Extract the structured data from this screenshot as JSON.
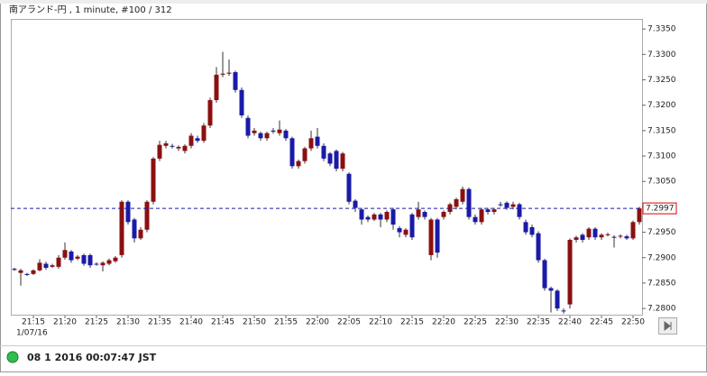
{
  "chart_data": {
    "type": "candlestick",
    "title": "南アランド-円 , 1 minute, #100 / 312",
    "date_label": "1/07/16",
    "categories": [
      null,
      null,
      null,
      "21:15",
      null,
      null,
      null,
      null,
      "21:20",
      null,
      null,
      null,
      null,
      "21:25",
      null,
      null,
      null,
      null,
      "21:30",
      null,
      null,
      null,
      null,
      "21:35",
      null,
      null,
      null,
      null,
      "21:40",
      null,
      null,
      null,
      null,
      "21:45",
      null,
      null,
      null,
      null,
      "21:50",
      null,
      null,
      null,
      null,
      "21:55",
      null,
      null,
      null,
      null,
      "22:00",
      null,
      null,
      null,
      null,
      "22:05",
      null,
      null,
      null,
      null,
      "22:10",
      null,
      null,
      null,
      null,
      "22:15",
      null,
      null,
      null,
      null,
      "22:20",
      null,
      null,
      null,
      null,
      "22:25",
      null,
      null,
      null,
      null,
      "22:30",
      null,
      null,
      null,
      null,
      "22:35",
      null,
      null,
      null,
      null,
      "22:40",
      null,
      null,
      null,
      null,
      "22:45",
      null,
      null,
      null,
      null,
      "22:50",
      null
    ],
    "open": [
      7.2878,
      7.287,
      7.2868,
      7.2868,
      7.2875,
      7.2888,
      7.2882,
      7.2882,
      7.29,
      7.2912,
      7.2898,
      7.2905,
      7.2905,
      7.2888,
      7.2885,
      7.2888,
      7.2893,
      7.2905,
      7.301,
      7.2975,
      7.2938,
      7.2955,
      7.301,
      7.3095,
      7.312,
      7.312,
      7.3115,
      7.311,
      7.312,
      7.3135,
      7.313,
      7.316,
      7.321,
      7.326,
      7.3262,
      7.3265,
      7.323,
      7.3175,
      7.3145,
      7.3145,
      7.3135,
      7.315,
      7.3145,
      7.315,
      7.3135,
      7.308,
      7.309,
      7.3115,
      7.3138,
      7.312,
      7.3105,
      7.311,
      7.3075,
      7.3065,
      7.3012,
      7.2995,
      7.298,
      7.2975,
      7.2985,
      7.2975,
      7.2995,
      7.2958,
      7.2945,
      7.2985,
      7.298,
      7.299,
      7.2905,
      7.2975,
      7.298,
      7.299,
      7.3,
      7.301,
      7.3035,
      7.298,
      7.297,
      7.2995,
      7.299,
      7.3005,
      7.3008,
      7.3,
      7.3005,
      7.297,
      7.296,
      7.2948,
      7.2895,
      7.284,
      7.2835,
      7.2796,
      7.2808,
      7.2935,
      7.2945,
      7.294,
      7.2957,
      7.294,
      7.2945,
      7.2941,
      7.2942,
      7.2942,
      7.2938,
      7.297
    ],
    "high": [
      7.288,
      7.2878,
      7.287,
      7.2877,
      7.2897,
      7.2892,
      7.2888,
      7.2905,
      7.293,
      7.2915,
      7.2905,
      7.2908,
      7.2908,
      7.2891,
      7.2893,
      7.2898,
      7.2903,
      7.3013,
      7.3013,
      7.2978,
      7.296,
      7.3013,
      7.3098,
      7.313,
      7.313,
      7.3124,
      7.3121,
      7.3123,
      7.3145,
      7.314,
      7.3165,
      7.3215,
      7.3275,
      7.3305,
      7.329,
      7.3268,
      7.3235,
      7.318,
      7.3155,
      7.3148,
      7.3148,
      7.3155,
      7.317,
      7.3153,
      7.3138,
      7.3093,
      7.3118,
      7.315,
      7.3155,
      7.3125,
      7.3108,
      7.3113,
      7.3108,
      7.3068,
      7.3015,
      7.2998,
      7.2983,
      7.2988,
      7.2988,
      7.2993,
      7.2998,
      7.2962,
      7.2958,
      7.2988,
      7.301,
      7.2993,
      7.2978,
      7.2978,
      7.2993,
      7.3008,
      7.3018,
      7.304,
      7.3038,
      7.2985,
      7.2998,
      7.2998,
      7.2998,
      7.301,
      7.3011,
      7.301,
      7.3008,
      7.2975,
      7.2965,
      7.2952,
      7.2898,
      7.2843,
      7.2838,
      7.28,
      7.2938,
      7.2943,
      7.2948,
      7.296,
      7.296,
      7.2948,
      7.2949,
      7.2944,
      7.2946,
      7.2945,
      7.2973,
      7.3
    ],
    "low": [
      7.2874,
      7.2845,
      7.2864,
      7.2866,
      7.2873,
      7.2876,
      7.288,
      7.2878,
      7.2896,
      7.289,
      7.2895,
      7.2884,
      7.288,
      7.2884,
      7.2873,
      7.2885,
      7.289,
      7.29,
      7.2965,
      7.293,
      7.2935,
      7.295,
      7.3005,
      7.309,
      7.3115,
      7.3115,
      7.311,
      7.3105,
      7.3115,
      7.3126,
      7.3126,
      7.3155,
      7.3205,
      7.3255,
      7.3258,
      7.3225,
      7.3175,
      7.3135,
      7.314,
      7.313,
      7.313,
      7.3144,
      7.314,
      7.313,
      7.3075,
      7.3075,
      7.3085,
      7.311,
      7.3115,
      7.309,
      7.308,
      7.307,
      7.307,
      7.3005,
      7.299,
      7.2965,
      7.297,
      7.2972,
      7.296,
      7.297,
      7.2955,
      7.294,
      7.294,
      7.2935,
      7.2975,
      7.2975,
      7.2895,
      7.29,
      7.2975,
      7.2985,
      7.2995,
      7.3005,
      7.2975,
      7.2965,
      7.2965,
      7.2985,
      7.2985,
      7.3,
      7.2994,
      7.2995,
      7.2975,
      7.2945,
      7.294,
      7.289,
      7.2835,
      7.2792,
      7.2795,
      7.279,
      7.28,
      7.293,
      7.293,
      7.2935,
      7.2935,
      7.2935,
      7.2942,
      7.292,
      7.2938,
      7.2935,
      7.2935,
      7.2965
    ],
    "close": [
      7.2876,
      7.2875,
      7.2866,
      7.2875,
      7.289,
      7.288,
      7.2885,
      7.29,
      7.2915,
      7.2895,
      7.2902,
      7.2888,
      7.2885,
      7.2887,
      7.289,
      7.2895,
      7.29,
      7.301,
      7.297,
      7.2938,
      7.2955,
      7.301,
      7.3095,
      7.3122,
      7.3125,
      7.3119,
      7.3118,
      7.312,
      7.314,
      7.313,
      7.316,
      7.321,
      7.326,
      7.3262,
      7.3264,
      7.323,
      7.318,
      7.314,
      7.315,
      7.3135,
      7.3145,
      7.3148,
      7.3152,
      7.3135,
      7.308,
      7.309,
      7.3115,
      7.3135,
      7.312,
      7.3095,
      7.3085,
      7.3075,
      7.3105,
      7.301,
      7.2998,
      7.2975,
      7.2975,
      7.2985,
      7.2975,
      7.299,
      7.2965,
      7.295,
      7.2955,
      7.294,
      7.2995,
      7.298,
      7.2975,
      7.291,
      7.299,
      7.3005,
      7.3015,
      7.3035,
      7.298,
      7.297,
      7.2995,
      7.299,
      7.2995,
      7.3004,
      7.2998,
      7.3005,
      7.298,
      7.295,
      7.2945,
      7.2895,
      7.284,
      7.2835,
      7.28,
      7.2795,
      7.2935,
      7.294,
      7.2935,
      7.2957,
      7.294,
      7.2945,
      7.2946,
      7.294,
      7.2943,
      7.2938,
      7.297,
      7.2997
    ],
    "up_color": "#8b1010",
    "down_color": "#1a1aa8",
    "ylim": [
      7.2786,
      7.3368
    ],
    "yticks": [
      {
        "value": 7.28,
        "label": "7.2800"
      },
      {
        "value": 7.285,
        "label": "7.2850"
      },
      {
        "value": 7.29,
        "label": "7.2900"
      },
      {
        "value": 7.295,
        "label": "7.2950"
      },
      {
        "value": 7.3,
        "label": "7.3000"
      },
      {
        "value": 7.305,
        "label": "7.3050"
      },
      {
        "value": 7.31,
        "label": "7.3100"
      },
      {
        "value": 7.315,
        "label": "7.3150"
      },
      {
        "value": 7.32,
        "label": "7.3200"
      },
      {
        "value": 7.325,
        "label": "7.3250"
      },
      {
        "value": 7.33,
        "label": "7.3300"
      },
      {
        "value": 7.335,
        "label": "7.3350"
      }
    ],
    "last_price": 7.2997,
    "last_color": "#1a1aa8"
  },
  "status": {
    "time": "08 1 2016 00:07:47 JST"
  }
}
